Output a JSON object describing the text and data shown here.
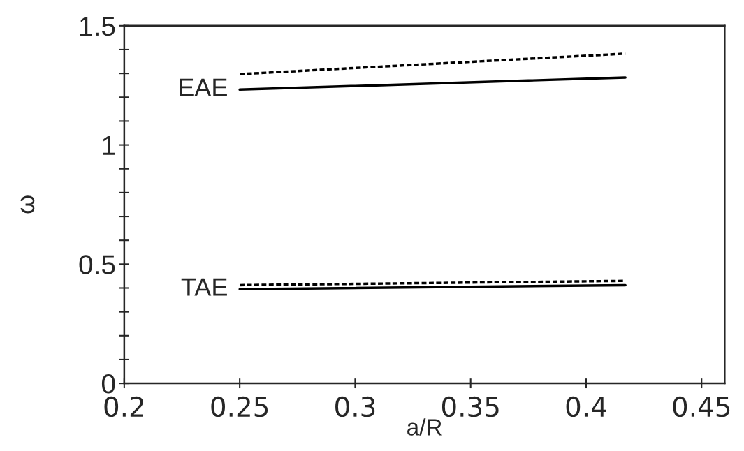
{
  "chart_data": {
    "type": "line",
    "xlabel": "a/R",
    "ylabel": "ω",
    "xlim": [
      0.2,
      0.46
    ],
    "xticks": [
      {
        "value": 0.2,
        "label": "0.2"
      },
      {
        "value": 0.25,
        "label": "0.25"
      },
      {
        "value": 0.3,
        "label": "0.3"
      },
      {
        "value": 0.35,
        "label": "0.35"
      },
      {
        "value": 0.4,
        "label": "0.4"
      },
      {
        "value": 0.45,
        "label": "0.45"
      }
    ],
    "ylim": [
      0,
      1.5
    ],
    "yticks": [
      0,
      {
        "value": 0.1,
        "label": null
      },
      {
        "value": 0.2,
        "label": null
      },
      {
        "value": 0.3,
        "label": null
      },
      {
        "value": 0.4,
        "label": null
      },
      0.5,
      {
        "value": 0.6,
        "label": null
      },
      {
        "value": 0.7,
        "label": null
      },
      {
        "value": 0.8,
        "label": null
      },
      {
        "value": 0.9,
        "label": null
      },
      1,
      {
        "value": 1.1,
        "label": null
      },
      {
        "value": 1.2,
        "label": null
      },
      {
        "value": 1.3,
        "label": null
      },
      {
        "value": 1.4,
        "label": null
      },
      1.5
    ],
    "x": [
      0.25,
      0.417
    ],
    "series": [
      {
        "color": "#000000",
        "line_style": "dashed",
        "values": [
          1.297,
          1.383
        ]
      },
      {
        "color": "#000000",
        "line_style": "solid",
        "values": [
          1.232,
          1.283
        ]
      },
      {
        "color": "#000000",
        "line_style": "dashed",
        "values": [
          0.412,
          0.43
        ]
      },
      {
        "color": "#000000",
        "line_style": "solid",
        "values": [
          0.395,
          0.412
        ]
      }
    ],
    "annotations": [
      {
        "text": "EAE",
        "x": 0.25,
        "y": 1.232
      },
      {
        "text": "TAE",
        "x": 0.25,
        "y": 0.395
      }
    ],
    "grid": false,
    "legend": false
  }
}
